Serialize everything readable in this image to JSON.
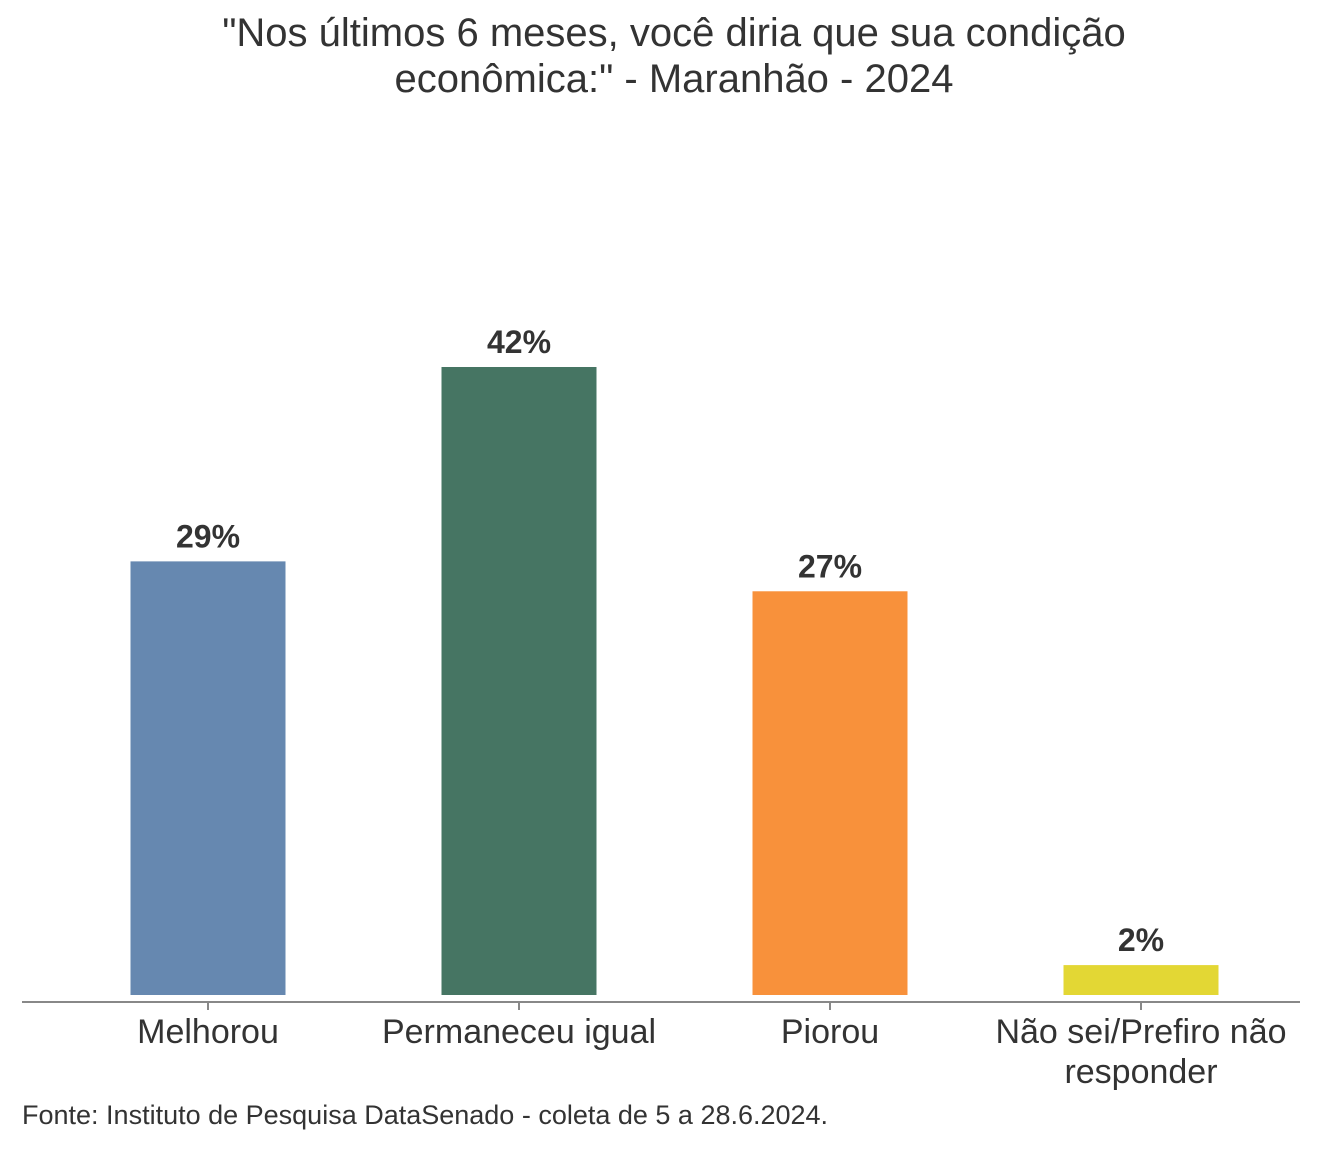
{
  "chart_data": {
    "type": "bar",
    "title": "\"Nos últimos 6 meses, você diria que sua condição econômica:\" - Maranhão - 2024",
    "categories": [
      "Melhorou",
      "Permaneceu igual",
      "Piorou",
      "Não sei/Prefiro não responder"
    ],
    "values": [
      29,
      42,
      27,
      2
    ],
    "value_labels": [
      "29%",
      "42%",
      "27%",
      "2%"
    ],
    "colors": [
      "#6688b0",
      "#467563",
      "#f8913b",
      "#e3d734"
    ],
    "source": "Fonte: Instituto de Pesquisa DataSenado - coleta de 5 a 28.6.2024."
  }
}
